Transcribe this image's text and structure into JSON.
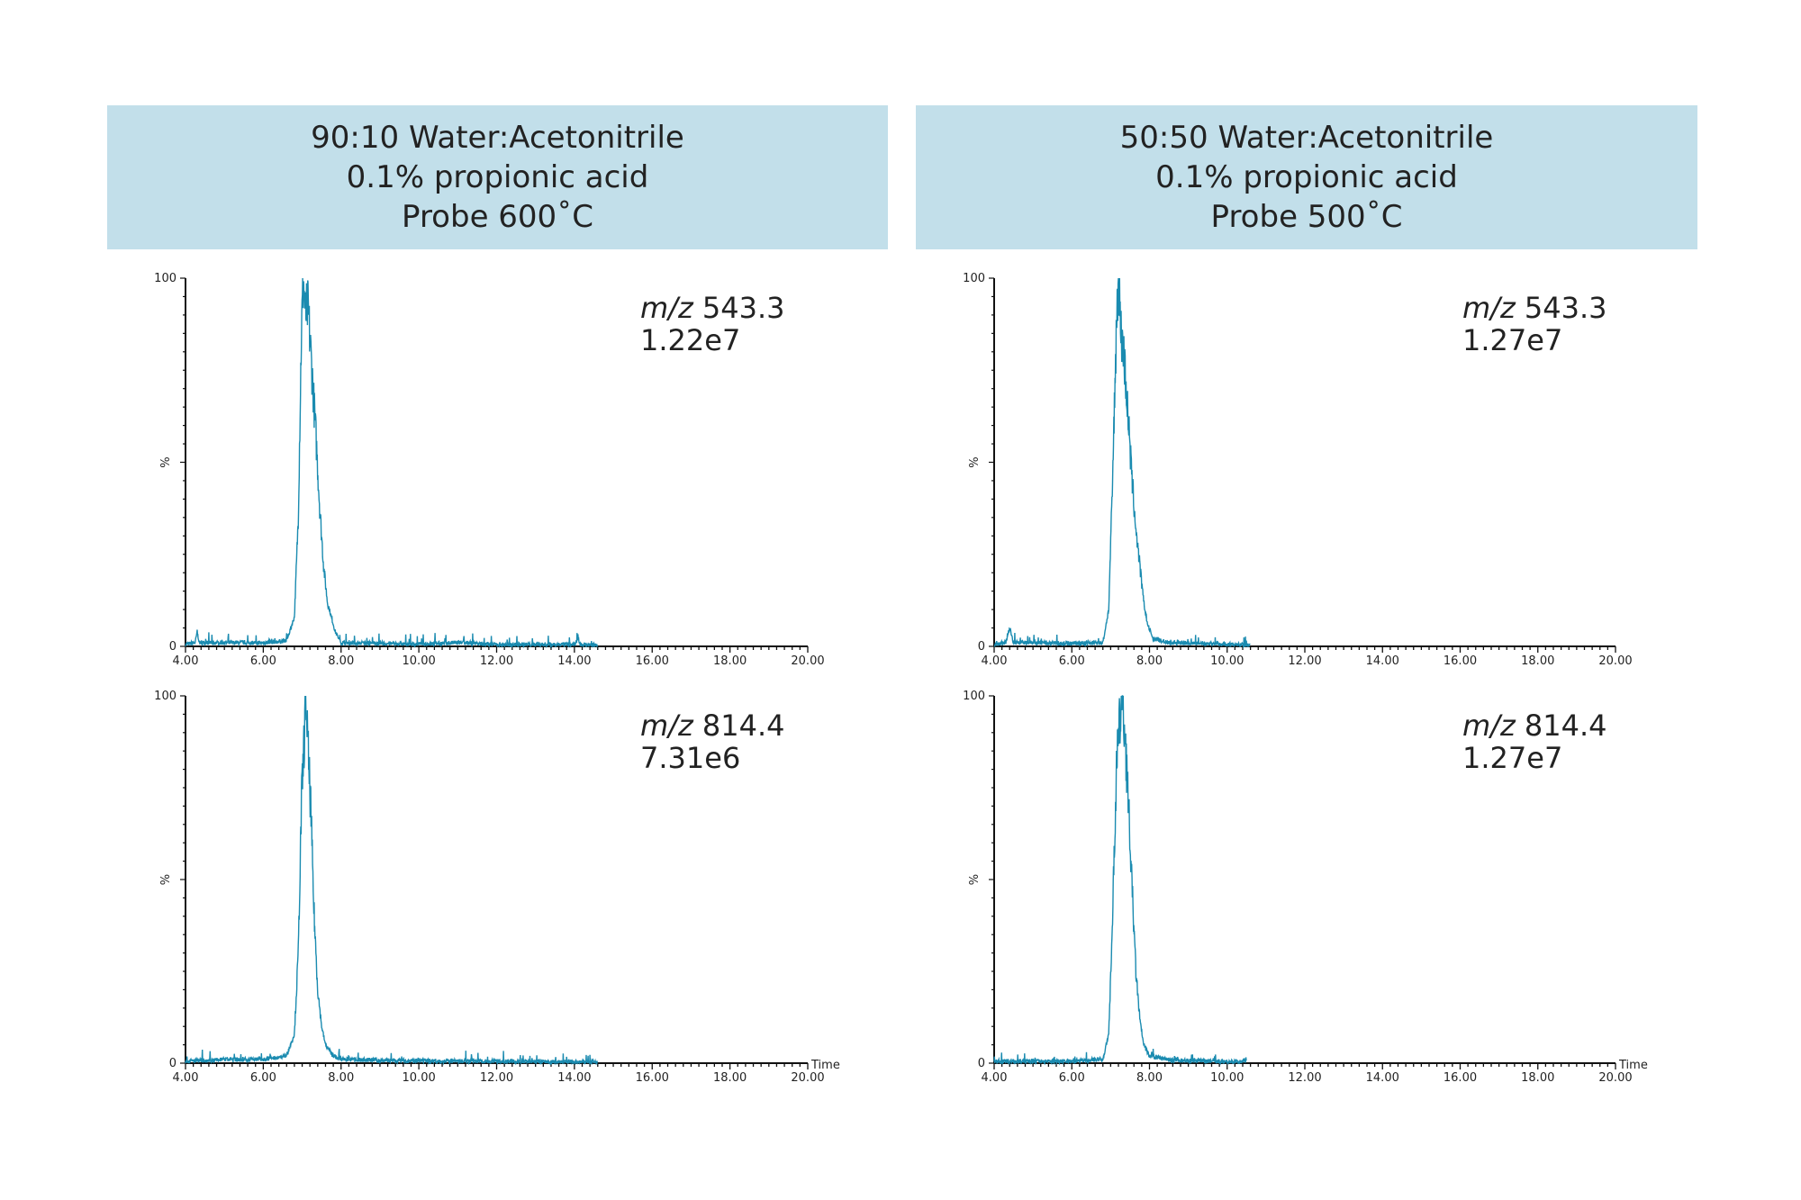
{
  "headers": [
    {
      "line1": "90:10 Water:Acetonitrile",
      "line2": "0.1% propionic acid",
      "line3": "Probe 600˚C"
    },
    {
      "line1": "50:50 Water:Acetonitrile",
      "line2": "0.1% propionic acid",
      "line3": "Probe 500˚C"
    }
  ],
  "chart_data": [
    {
      "type": "line",
      "panel": "top-left",
      "mz_prefix": "m/z",
      "mz": "543.3",
      "intensity": "1.22e7",
      "xlabel": "",
      "ylabel": "%",
      "xlim": [
        4,
        20
      ],
      "ylim": [
        0,
        100
      ],
      "xticks": [
        "4.00",
        "6.00",
        "8.00",
        "10.00",
        "12.00",
        "14.00",
        "16.00",
        "18.00",
        "20.00"
      ],
      "yticks": [
        "0",
        "100"
      ],
      "color": "#1a8bb0",
      "points": [
        [
          4.0,
          0.5
        ],
        [
          4.25,
          1
        ],
        [
          4.3,
          4
        ],
        [
          4.35,
          1
        ],
        [
          5.0,
          1
        ],
        [
          6.0,
          1
        ],
        [
          6.6,
          1.5
        ],
        [
          6.8,
          8
        ],
        [
          6.9,
          35
        ],
        [
          6.98,
          85
        ],
        [
          7.03,
          100
        ],
        [
          7.08,
          90
        ],
        [
          7.15,
          92
        ],
        [
          7.25,
          75
        ],
        [
          7.35,
          58
        ],
        [
          7.45,
          38
        ],
        [
          7.55,
          22
        ],
        [
          7.65,
          12
        ],
        [
          7.75,
          8
        ],
        [
          7.85,
          4
        ],
        [
          8.0,
          1
        ],
        [
          9.0,
          0.8
        ],
        [
          10.0,
          0.6
        ],
        [
          11.0,
          1
        ],
        [
          12.0,
          0.5
        ],
        [
          14.0,
          0.5
        ],
        [
          14.1,
          2
        ],
        [
          14.15,
          0.5
        ],
        [
          14.6,
          0.3
        ]
      ]
    },
    {
      "type": "line",
      "panel": "bottom-left",
      "mz_prefix": "m/z",
      "mz": "814.4",
      "intensity": "7.31e6",
      "xlabel": "Time",
      "ylabel": "%",
      "xlim": [
        4,
        20
      ],
      "ylim": [
        0,
        100
      ],
      "xticks": [
        "4.00",
        "6.00",
        "8.00",
        "10.00",
        "12.00",
        "14.00",
        "16.00",
        "18.00",
        "20.00"
      ],
      "yticks": [
        "0",
        "100"
      ],
      "color": "#1a8bb0",
      "points": [
        [
          4.0,
          0.5
        ],
        [
          5.0,
          1
        ],
        [
          6.0,
          1
        ],
        [
          6.6,
          2
        ],
        [
          6.8,
          8
        ],
        [
          6.9,
          30
        ],
        [
          6.98,
          70
        ],
        [
          7.05,
          88
        ],
        [
          7.1,
          100
        ],
        [
          7.15,
          85
        ],
        [
          7.22,
          70
        ],
        [
          7.3,
          42
        ],
        [
          7.4,
          20
        ],
        [
          7.5,
          10
        ],
        [
          7.6,
          5
        ],
        [
          7.8,
          2
        ],
        [
          8.0,
          1
        ],
        [
          9.0,
          0.8
        ],
        [
          10.0,
          0.6
        ],
        [
          12.0,
          0.5
        ],
        [
          14.6,
          0.3
        ]
      ]
    },
    {
      "type": "line",
      "panel": "top-right",
      "mz_prefix": "m/z",
      "mz": "543.3",
      "intensity": "1.27e7",
      "xlabel": "",
      "ylabel": "%",
      "xlim": [
        4,
        20
      ],
      "ylim": [
        0,
        100
      ],
      "xticks": [
        "4.00",
        "6.00",
        "8.00",
        "10.00",
        "12.00",
        "14.00",
        "16.00",
        "18.00",
        "20.00"
      ],
      "yticks": [
        "0",
        "100"
      ],
      "color": "#1a8bb0",
      "points": [
        [
          4.0,
          0.5
        ],
        [
          4.3,
          1
        ],
        [
          4.4,
          5
        ],
        [
          4.5,
          1
        ],
        [
          5.0,
          1
        ],
        [
          6.0,
          0.8
        ],
        [
          6.8,
          1
        ],
        [
          6.95,
          10
        ],
        [
          7.05,
          45
        ],
        [
          7.15,
          88
        ],
        [
          7.2,
          100
        ],
        [
          7.27,
          85
        ],
        [
          7.35,
          78
        ],
        [
          7.45,
          62
        ],
        [
          7.55,
          45
        ],
        [
          7.65,
          32
        ],
        [
          7.75,
          22
        ],
        [
          7.85,
          12
        ],
        [
          7.95,
          6
        ],
        [
          8.1,
          2
        ],
        [
          8.5,
          1
        ],
        [
          9.5,
          0.8
        ],
        [
          10.6,
          0.3
        ]
      ]
    },
    {
      "type": "line",
      "panel": "bottom-right",
      "mz_prefix": "m/z",
      "mz": "814.4",
      "intensity": "1.27e7",
      "xlabel": "Time",
      "ylabel": "%",
      "xlim": [
        4,
        20
      ],
      "ylim": [
        0,
        100
      ],
      "xticks": [
        "4.00",
        "6.00",
        "8.00",
        "10.00",
        "12.00",
        "14.00",
        "16.00",
        "18.00",
        "20.00"
      ],
      "yticks": [
        "0",
        "100"
      ],
      "color": "#1a8bb0",
      "points": [
        [
          4.0,
          0.5
        ],
        [
          5.0,
          0.5
        ],
        [
          6.0,
          0.6
        ],
        [
          6.8,
          1
        ],
        [
          6.95,
          8
        ],
        [
          7.05,
          40
        ],
        [
          7.15,
          80
        ],
        [
          7.25,
          95
        ],
        [
          7.3,
          100
        ],
        [
          7.38,
          88
        ],
        [
          7.45,
          72
        ],
        [
          7.55,
          48
        ],
        [
          7.65,
          25
        ],
        [
          7.75,
          12
        ],
        [
          7.85,
          5
        ],
        [
          8.0,
          2
        ],
        [
          8.5,
          0.8
        ],
        [
          9.5,
          0.6
        ],
        [
          10.5,
          0.3
        ]
      ]
    }
  ]
}
